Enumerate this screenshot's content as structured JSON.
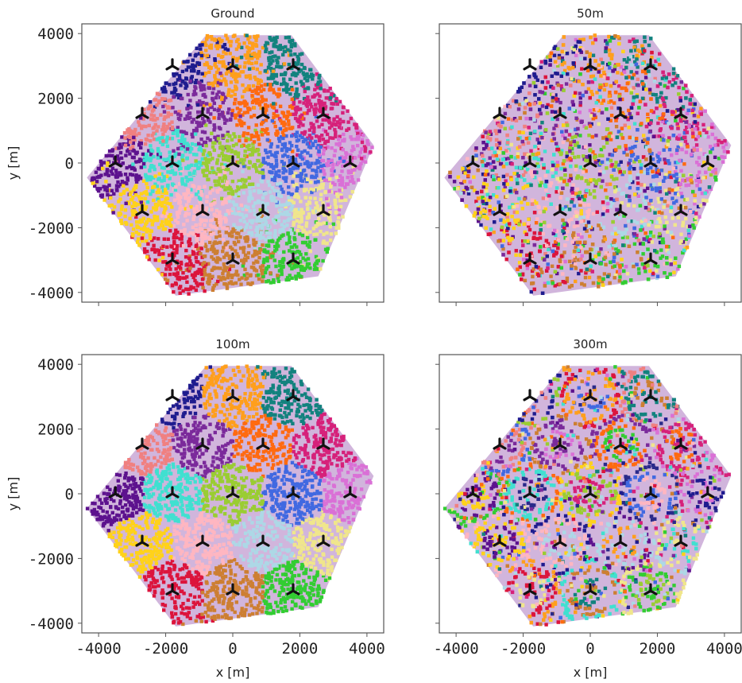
{
  "colors": {
    "palette": [
      "#1f1c8f",
      "#ff9f1c",
      "#12827e",
      "#f08080",
      "#7b2a9b",
      "#ff6a10",
      "#d6217a",
      "#5d128e",
      "#40e0d0",
      "#9acd32",
      "#4169e1",
      "#da70d6",
      "#ffd21a",
      "#ffb6c1",
      "#add8e6",
      "#f0e68c",
      "#dc143c",
      "#cd7f32",
      "#32cd32",
      "#2a2a8a"
    ],
    "site_marker": "#111111",
    "frame": "#555555"
  },
  "chart_data": [
    {
      "type": "scatter",
      "title": "Ground",
      "pattern": "blobs",
      "xlabel": "",
      "ylabel": "y [m]",
      "xlim": [
        -4500,
        4500
      ],
      "ylim": [
        -4300,
        4300
      ],
      "xticks": [
        "-4000",
        "-2000",
        "0",
        "2000",
        "4000"
      ],
      "yticks": [
        "4000",
        "2000",
        "0",
        "-2000",
        "-4000"
      ],
      "show_xtick_labels": false,
      "show_ytick_labels": true,
      "sites": {
        "x": [
          -1800,
          0,
          1800,
          -2700,
          -900,
          900,
          2700,
          -3500,
          -1800,
          0,
          1800,
          3500,
          -2700,
          -900,
          900,
          2700,
          -1800,
          0,
          1800
        ],
        "y": [
          3000,
          3000,
          3000,
          1500,
          1500,
          1500,
          1500,
          0,
          0,
          0,
          0,
          0,
          -1500,
          -1500,
          -1500,
          -1500,
          -3000,
          -3000,
          -3000
        ]
      }
    },
    {
      "type": "scatter",
      "title": "50m",
      "pattern": "diffuse",
      "xlabel": "",
      "ylabel": "",
      "xlim": [
        -4500,
        4500
      ],
      "ylim": [
        -4300,
        4300
      ],
      "xticks": [
        "-4000",
        "-2000",
        "0",
        "2000",
        "4000"
      ],
      "yticks": [
        "4000",
        "2000",
        "0",
        "-2000",
        "-4000"
      ],
      "show_xtick_labels": false,
      "show_ytick_labels": false,
      "sites": {
        "x": [
          -1800,
          0,
          1800,
          -2700,
          -900,
          900,
          2700,
          -3500,
          -1800,
          0,
          1800,
          3500,
          -2700,
          -900,
          900,
          2700,
          -1800,
          0,
          1800
        ],
        "y": [
          3000,
          3000,
          3000,
          1500,
          1500,
          1500,
          1500,
          0,
          0,
          0,
          0,
          0,
          -1500,
          -1500,
          -1500,
          -1500,
          -3000,
          -3000,
          -3000
        ]
      }
    },
    {
      "type": "scatter",
      "title": "100m",
      "pattern": "discs",
      "xlabel": "x [m]",
      "ylabel": "y [m]",
      "xlim": [
        -4500,
        4500
      ],
      "ylim": [
        -4300,
        4300
      ],
      "xticks": [
        "-4000",
        "-2000",
        "0",
        "2000",
        "4000"
      ],
      "yticks": [
        "4000",
        "2000",
        "0",
        "-2000",
        "-4000"
      ],
      "show_xtick_labels": true,
      "show_ytick_labels": true,
      "sites": {
        "x": [
          -1800,
          0,
          1800,
          -2700,
          -900,
          900,
          2700,
          -3500,
          -1800,
          0,
          1800,
          3500,
          -2700,
          -900,
          900,
          2700,
          -1800,
          0,
          1800
        ],
        "y": [
          3000,
          3000,
          3000,
          1500,
          1500,
          1500,
          1500,
          0,
          0,
          0,
          0,
          0,
          -1500,
          -1500,
          -1500,
          -1500,
          -3000,
          -3000,
          -3000
        ]
      }
    },
    {
      "type": "scatter",
      "title": "300m",
      "pattern": "rings",
      "xlabel": "x [m]",
      "ylabel": "",
      "xlim": [
        -4500,
        4500
      ],
      "ylim": [
        -4300,
        4300
      ],
      "xticks": [
        "-4000",
        "-2000",
        "0",
        "2000",
        "4000"
      ],
      "yticks": [
        "4000",
        "2000",
        "0",
        "-2000",
        "-4000"
      ],
      "show_xtick_labels": true,
      "show_ytick_labels": false,
      "sites": {
        "x": [
          -1800,
          0,
          1800,
          -2700,
          -900,
          900,
          2700,
          -3500,
          -1800,
          0,
          1800,
          3500,
          -2700,
          -900,
          900,
          2700,
          -1800,
          0,
          1800
        ],
        "y": [
          3000,
          3000,
          3000,
          1500,
          1500,
          1500,
          1500,
          0,
          0,
          0,
          0,
          0,
          -1500,
          -1500,
          -1500,
          -1500,
          -3000,
          -3000,
          -3000
        ]
      }
    }
  ]
}
